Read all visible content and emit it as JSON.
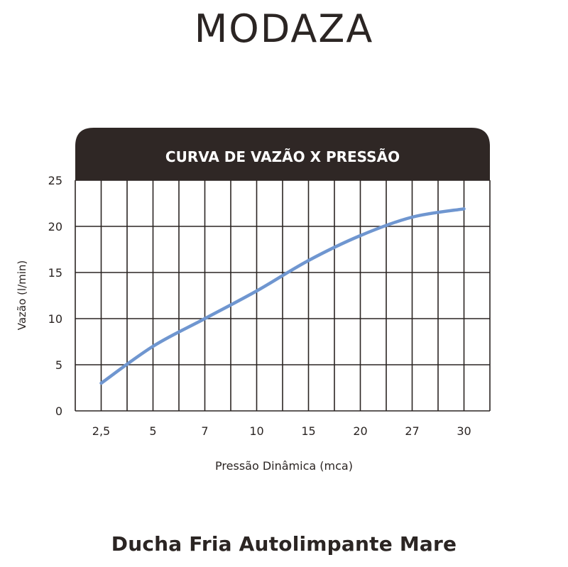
{
  "brand": {
    "logo_text": "MODAZA"
  },
  "chart_data": {
    "type": "line",
    "title": "CURVA DE VAZÃO X PRESSÃO",
    "xlabel": "Pressão Dinâmica (mca)",
    "ylabel": "Vazão (l/min)",
    "x_tick_labels": [
      "2,5",
      "5",
      "7",
      "10",
      "15",
      "20",
      "27",
      "30"
    ],
    "y_ticks": [
      0,
      5,
      10,
      15,
      20,
      25
    ],
    "ylim": [
      0,
      25
    ],
    "grid": true,
    "line_color": "#6f96d0",
    "header_color": "#2f2725",
    "series": [
      {
        "x": [
          "2,5",
          "5",
          "7",
          "10",
          "15",
          "20",
          "27",
          "30"
        ],
        "values": [
          3.0,
          7.0,
          10.0,
          13.0,
          16.3,
          19.0,
          21.0,
          21.9
        ]
      }
    ]
  },
  "product": {
    "name": "Ducha Fria Autolimpante Mare"
  }
}
